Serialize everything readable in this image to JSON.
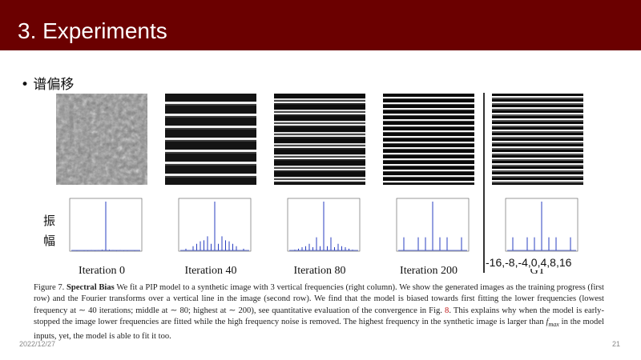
{
  "slide": {
    "title": "3. Experiments",
    "bullet": "• 谱偏移",
    "ylabel_chars": [
      "振",
      "幅"
    ],
    "axis_annotation": "-16,-8,-4,0,4,8,16",
    "captions": [
      "Iteration 0",
      "Iteration 40",
      "Iteration 80",
      "Iteration 200",
      "GT"
    ],
    "figure_caption": {
      "label": "Figure 7.",
      "title": "Spectral Bias",
      "text1": " We fit a PIP model to a synthetic image with 3 vertical frequencies (right column). We show the generated images as the training progress (first row) and the Fourier transforms over a vertical line in the image (second row).  We find that the model is biased towards first fitting the lower frequencies (lowest frequency at ∼ 40 iterations; middle at ∼ 80; highest at ∼ 200), see quantitative evaluation of the convergence in Fig. ",
      "ref": "8",
      "text2": ". This explains why when the model is early-stopped the image lower frequencies are fitted while the high frequency noise is removed. The highest frequency in the synthetic image is larger than ",
      "fmax": "f",
      "fmax_sub": "max",
      "text3": " in the model inputs, yet, the model is able to fit it too."
    },
    "footer_date": "2022/12/27",
    "page_number": "21"
  },
  "colors": {
    "header": "#6b0000",
    "plot_line": "#2a3fc0",
    "ref": "#c01818"
  },
  "chart_data": [
    {
      "type": "bar",
      "title": "",
      "x": [
        -16,
        -12,
        -10,
        -8,
        -6,
        -4,
        -2,
        0,
        2,
        4,
        6,
        8,
        10,
        12,
        16
      ],
      "values": [
        0.01,
        0.01,
        0.01,
        0.02,
        0.01,
        0.02,
        0.03,
        1.0,
        0.03,
        0.02,
        0.01,
        0.02,
        0.01,
        0.01,
        0.01
      ]
    },
    {
      "type": "bar",
      "title": "",
      "x": [
        -16,
        -12,
        -10,
        -8,
        -6,
        -4,
        -2,
        0,
        2,
        4,
        6,
        8,
        10,
        12,
        16
      ],
      "values": [
        0.05,
        0.1,
        0.15,
        0.2,
        0.22,
        0.3,
        0.15,
        1.0,
        0.15,
        0.3,
        0.22,
        0.2,
        0.15,
        0.1,
        0.05
      ]
    },
    {
      "type": "bar",
      "title": "",
      "x": [
        -16,
        -14,
        -12,
        -10,
        -8,
        -6,
        -4,
        -2,
        0,
        2,
        4,
        6,
        8,
        10,
        12,
        14,
        16
      ],
      "values": [
        0.03,
        0.05,
        0.08,
        0.1,
        0.15,
        0.08,
        0.28,
        0.1,
        1.0,
        0.1,
        0.28,
        0.08,
        0.15,
        0.1,
        0.08,
        0.05,
        0.03
      ]
    },
    {
      "type": "bar",
      "title": "",
      "x": [
        -16,
        -8,
        -4,
        0,
        4,
        8,
        16
      ],
      "values": [
        0.28,
        0.28,
        0.28,
        1.0,
        0.28,
        0.28,
        0.28
      ]
    },
    {
      "type": "bar",
      "title": "",
      "x": [
        -16,
        -8,
        -4,
        0,
        4,
        8,
        16
      ],
      "values": [
        0.28,
        0.28,
        0.28,
        1.0,
        0.28,
        0.28,
        0.28
      ]
    }
  ]
}
